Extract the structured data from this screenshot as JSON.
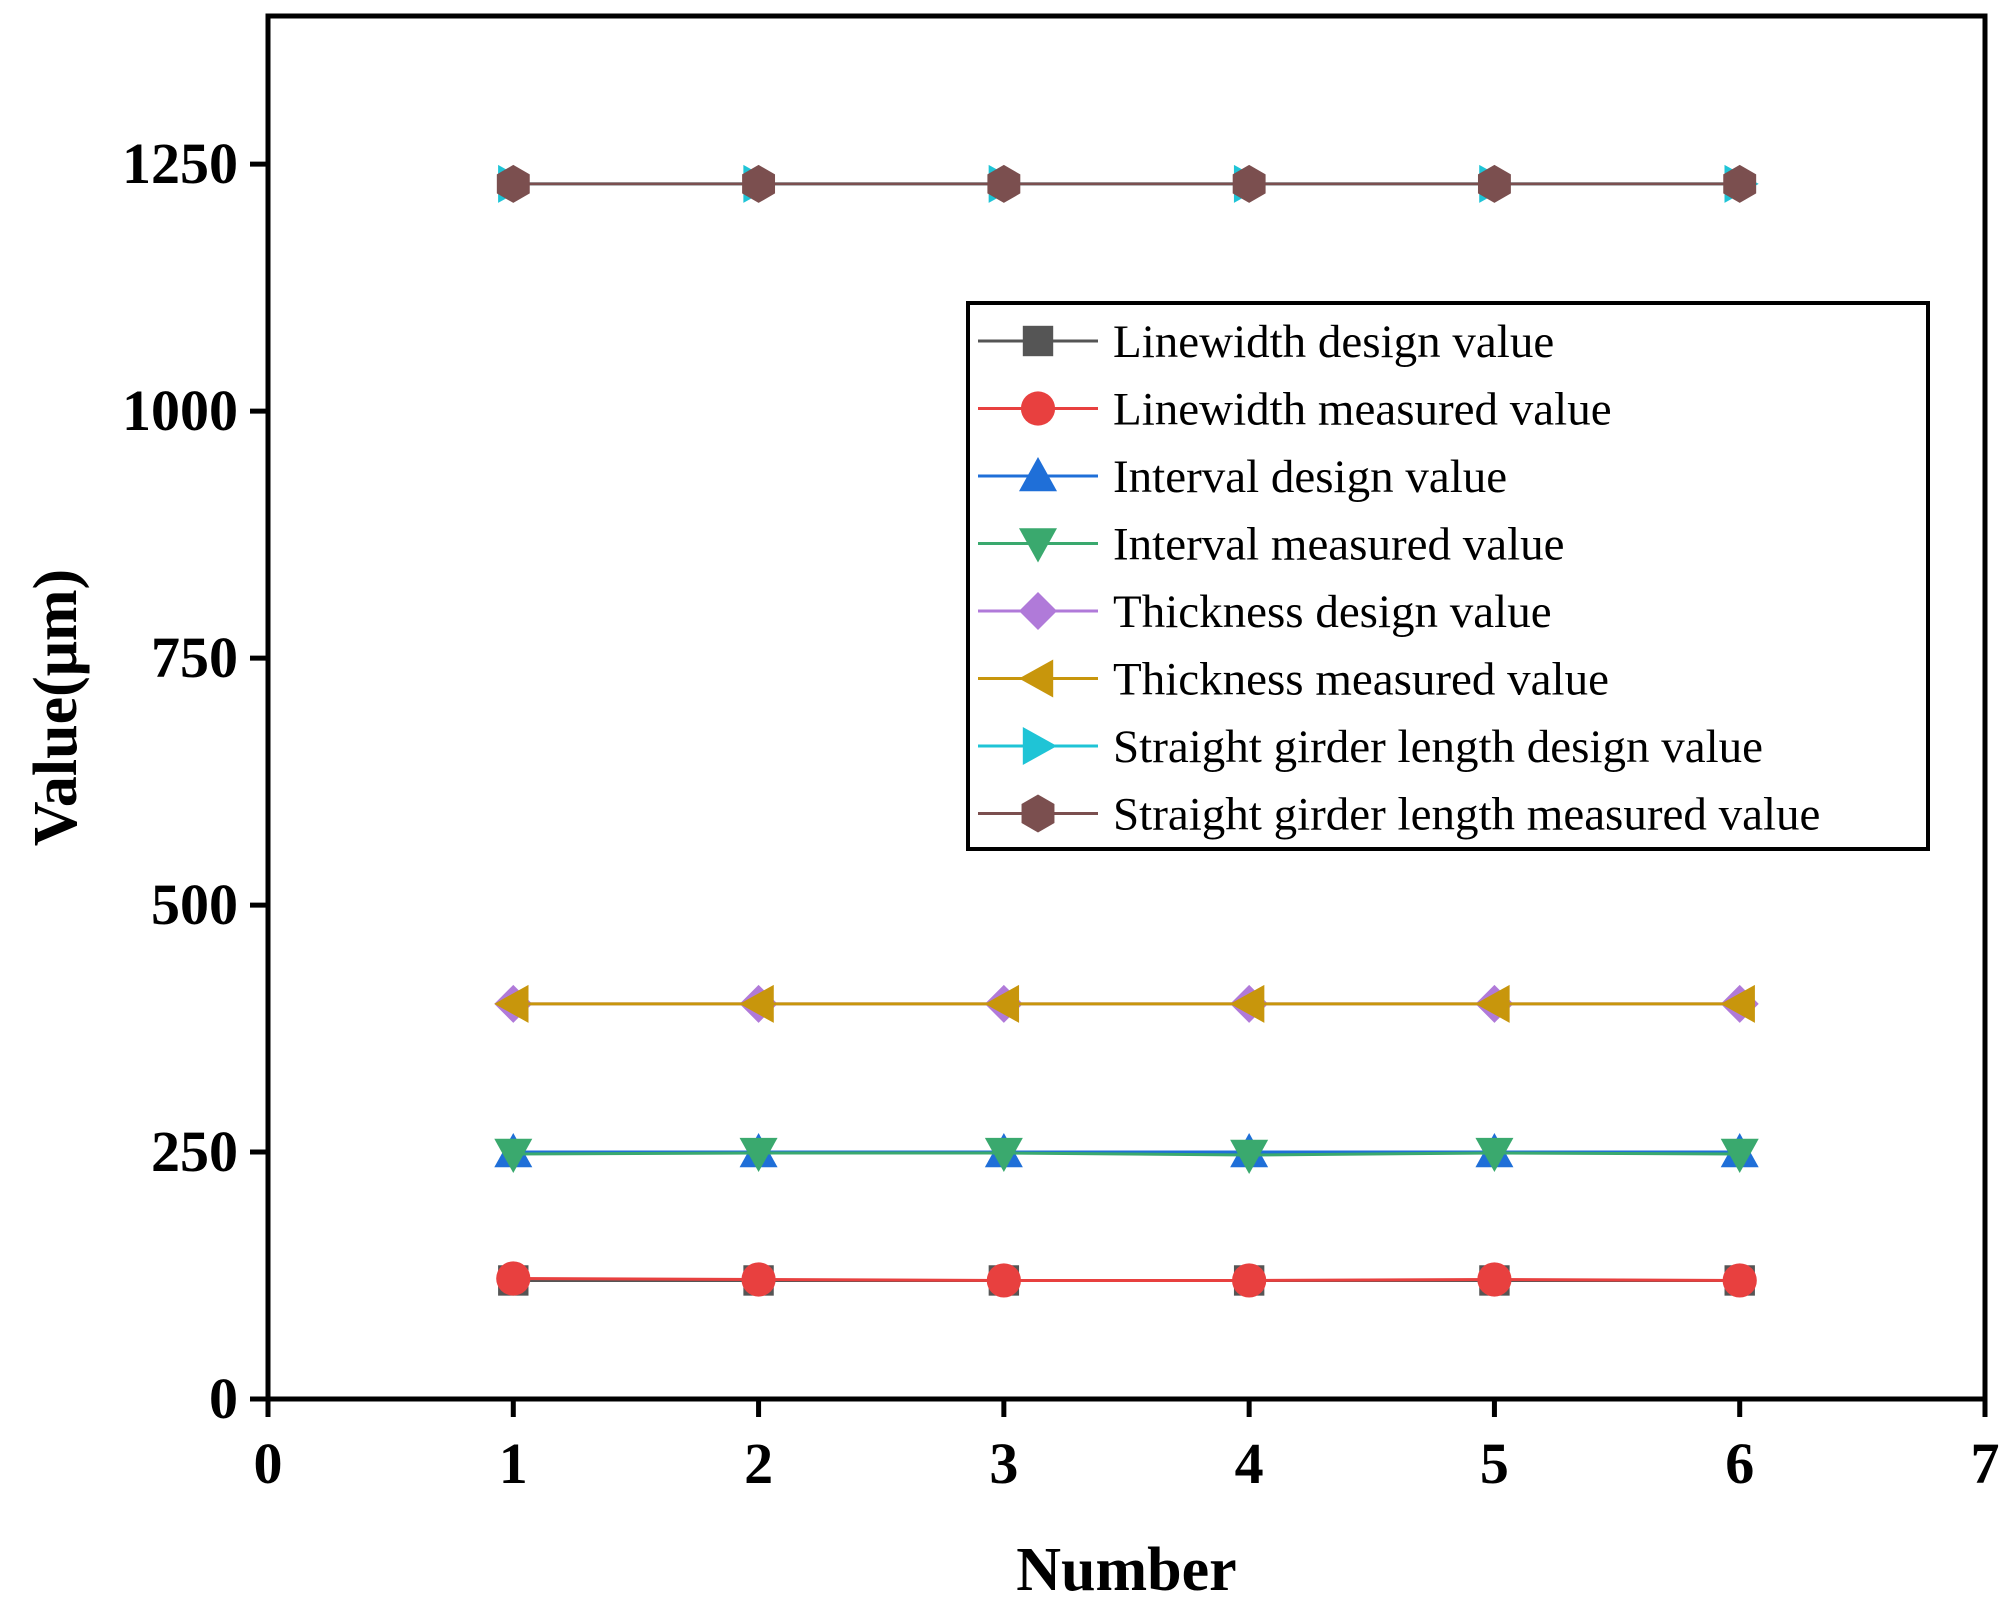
{
  "chart_data": {
    "type": "line",
    "title": "",
    "xlabel": "Number",
    "ylabel": "Value(μm)",
    "xlim": [
      0,
      7
    ],
    "ylim": [
      0,
      1400
    ],
    "x_ticks": [
      0,
      1,
      2,
      3,
      4,
      5,
      6,
      7
    ],
    "x_tick_labels": [
      "0",
      "1",
      "2",
      "3",
      "4",
      "5",
      "6",
      "7"
    ],
    "y_ticks": [
      0,
      250,
      500,
      750,
      1000,
      1250
    ],
    "y_tick_labels": [
      "0",
      "250",
      "500",
      "750",
      "1000",
      "1250"
    ],
    "grid": false,
    "legend_position": "center-right",
    "x": [
      1,
      2,
      3,
      4,
      5,
      6
    ],
    "series": [
      {
        "name": "Linewidth design value",
        "color": "#555555",
        "marker": "square",
        "values": [
          120,
          120,
          120,
          120,
          120,
          120
        ]
      },
      {
        "name": "Linewidth measured value",
        "color": "#e8403f",
        "marker": "circle",
        "values": [
          122,
          121,
          120,
          120,
          121,
          120
        ]
      },
      {
        "name": "Interval design value",
        "color": "#1f6fd8",
        "marker": "triangle-up",
        "values": [
          250,
          250,
          250,
          250,
          250,
          250
        ]
      },
      {
        "name": "Interval measured value",
        "color": "#3aa96e",
        "marker": "triangle-down",
        "values": [
          248,
          249,
          249,
          247,
          249,
          248
        ]
      },
      {
        "name": "Thickness design value",
        "color": "#b07ad9",
        "marker": "diamond",
        "values": [
          400,
          400,
          400,
          400,
          400,
          400
        ]
      },
      {
        "name": "Thickness measured value",
        "color": "#c8960c",
        "marker": "triangle-left",
        "values": [
          400,
          400,
          400,
          400,
          400,
          400
        ]
      },
      {
        "name": "Straight girder length design value",
        "color": "#1fc4d6",
        "marker": "triangle-right",
        "values": [
          1230,
          1230,
          1230,
          1230,
          1230,
          1230
        ]
      },
      {
        "name": "Straight girder length measured value",
        "color": "#7b4f4f",
        "marker": "hexagon",
        "values": [
          1230,
          1230,
          1230,
          1230,
          1230,
          1230
        ]
      }
    ]
  }
}
